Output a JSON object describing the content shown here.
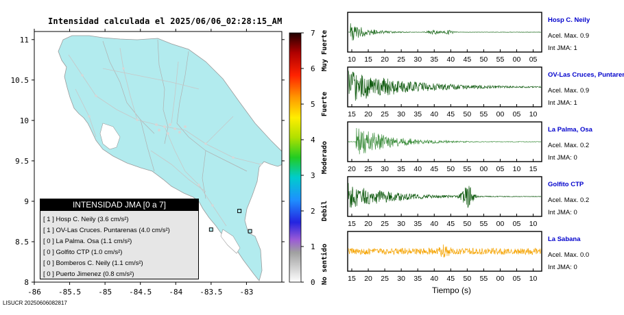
{
  "map": {
    "title": "Intensidad calculada el 2025/06/06_02:28:15_AM",
    "x_ticks": [
      "-86",
      "-85.5",
      "-85",
      "-84.5",
      "-84",
      "-83.5",
      "-83"
    ],
    "y_ticks": [
      "11",
      "10.5",
      "10",
      "9.5",
      "9",
      "8.5",
      "8"
    ],
    "land_color": "#b2ebee",
    "ocean_color": "#ffffff",
    "xlim": [
      -86.0,
      -82.5
    ],
    "ylim": [
      8.0,
      11.1
    ],
    "stations": [
      {
        "lon": -82.95,
        "lat": 8.63
      },
      {
        "lon": -83.1,
        "lat": 8.88
      },
      {
        "lon": -83.5,
        "lat": 8.65
      }
    ]
  },
  "colorbar": {
    "ticks": [
      "7",
      "6",
      "5",
      "4",
      "3",
      "2",
      "1",
      "0"
    ],
    "labels": [
      "Muy Fuerte",
      "Fuerte",
      "Moderado",
      "Debil",
      "No sentido"
    ]
  },
  "legend": {
    "title": "INTENSIDAD JMA [0 a 7]",
    "items": [
      {
        "text": "[ 1 ]  Hosp C. Neily (3.6 cm/s²)"
      },
      {
        "text": "[ 1 ]  OV-Las Cruces. Puntarenas (4.0 cm/s²)"
      },
      {
        "text": "[ 0 ]  La Palma. Osa (1.1 cm/s²)"
      },
      {
        "text": "[ 0 ]  Golfito CTP (1.0 cm/s²)"
      },
      {
        "text": "[ 0 ]  Bomberos C. Neily (1.1 cm/s²)"
      },
      {
        "text": "[ 0 ]  Puerto Jimenez (0.8 cm/s²)"
      }
    ]
  },
  "footer": "LISUCR 20250606082817",
  "chart_data": {
    "type": "line",
    "xlabel": "Tiempo (s)",
    "series": [
      {
        "name": "Hosp C. Neily",
        "acel": "Acel. Max. 0.9",
        "int": "Int JMA: 1",
        "color": "#1e6b1e",
        "ticks": [
          "10",
          "15",
          "20",
          "25",
          "30",
          "35",
          "40",
          "45",
          "50",
          "55",
          "00",
          "05"
        ],
        "amp": 0.55,
        "decay": 0.09,
        "onset": 0.01,
        "bursts": [
          [
            0.44,
            0.25
          ],
          [
            0.52,
            0.2
          ]
        ]
      },
      {
        "name": "OV-Las Cruces, Puntarenas",
        "acel": "Acel. Max. 0.9",
        "int": "Int JMA: 1",
        "color": "#0f5a0f",
        "ticks": [
          "15",
          "20",
          "25",
          "30",
          "35",
          "40",
          "45",
          "50",
          "55",
          "00",
          "05",
          "10"
        ],
        "amp": 0.9,
        "decay": 0.3,
        "onset": 0.0,
        "bursts": []
      },
      {
        "name": "La Palma, Osa",
        "acel": "Acel. Max. 0.2",
        "int": "Int JMA: 0",
        "color": "#3f8f3f",
        "ticks": [
          "20",
          "25",
          "30",
          "35",
          "40",
          "45",
          "50",
          "55",
          "00",
          "05",
          "10",
          "15"
        ],
        "amp": 0.85,
        "decay": 0.18,
        "onset": 0.04,
        "bursts": []
      },
      {
        "name": "Golfito CTP",
        "acel": "Acel. Max. 0.2",
        "int": "Int JMA: 0",
        "color": "#0f5a0f",
        "ticks": [
          "15",
          "20",
          "25",
          "30",
          "35",
          "40",
          "45",
          "50",
          "55",
          "00",
          "05",
          "10"
        ],
        "amp": 0.75,
        "decay": 0.22,
        "onset": 0.0,
        "bursts": [
          [
            0.62,
            0.8
          ]
        ]
      },
      {
        "name": "La Sabana",
        "acel": "Acel. Max. 0.0",
        "int": "Int JMA: 0",
        "color": "#f5a300",
        "ticks": [
          "15",
          "20",
          "25",
          "30",
          "35",
          "40",
          "45",
          "50",
          "55",
          "00",
          "05",
          "10"
        ],
        "amp": 0.35,
        "decay": 99,
        "onset": 0.0,
        "bursts": [
          [
            0.5,
            0.6
          ]
        ]
      }
    ]
  }
}
